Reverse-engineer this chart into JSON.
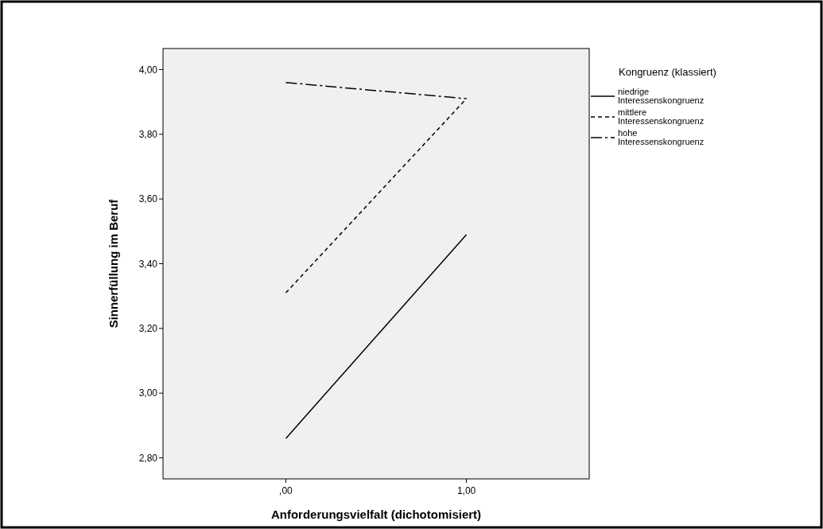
{
  "chart_data": {
    "type": "line",
    "xlabel": "Anforderungsvielfalt (dichotomisiert)",
    "ylabel": "Sinnerfüllung im Beruf",
    "legend_title": "Kongruenz (klassiert)",
    "x": [
      0,
      1
    ],
    "xlim": [
      -0.68,
      1.68
    ],
    "xticks": [
      {
        "value": 0,
        "label": ",00"
      },
      {
        "value": 1,
        "label": "1,00"
      }
    ],
    "series": [
      {
        "name": "niedrige Interessenskongruenz",
        "color": "#000000",
        "line_style": "solid",
        "values": [
          2.86,
          3.49
        ]
      },
      {
        "name": "mittlere Interessenskongruenz",
        "color": "#000000",
        "line_style": "dashed",
        "values": [
          3.31,
          3.91
        ]
      },
      {
        "name": "hohe Interessenskongruenz",
        "color": "#000000",
        "line_style": "dashdot",
        "values": [
          3.96,
          3.91
        ]
      }
    ],
    "ylim": [
      2.735,
      4.065
    ],
    "yticks": [
      {
        "value": 2.8,
        "label": "2,80"
      },
      {
        "value": 3.0,
        "label": "3,00"
      },
      {
        "value": 3.2,
        "label": "3,20"
      },
      {
        "value": 3.4,
        "label": "3,40"
      },
      {
        "value": 3.6,
        "label": "3,60"
      },
      {
        "value": 3.8,
        "label": "3,80"
      },
      {
        "value": 4.0,
        "label": "4,00"
      }
    ],
    "legend": "right",
    "grid": false,
    "marker": "none"
  }
}
